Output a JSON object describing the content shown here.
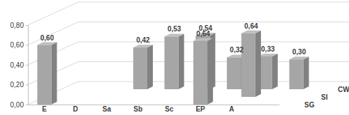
{
  "chart_data": {
    "type": "bar",
    "categories": [
      "E",
      "D",
      "Sa",
      "Sb",
      "Sc",
      "EP",
      "A",
      null
    ],
    "series": [
      {
        "name": "SG",
        "color": "#a6a6a6",
        "values": [
          0.6,
          null,
          null,
          null,
          null,
          0.64,
          null,
          null
        ],
        "value_labels": [
          "0,60",
          null,
          null,
          null,
          null,
          "0,64",
          null,
          null
        ]
      },
      {
        "name": "SI",
        "color": "#a6a6a6",
        "values": [
          null,
          null,
          null,
          null,
          null,
          null,
          0.64,
          null
        ],
        "value_labels": [
          null,
          null,
          null,
          null,
          null,
          null,
          "0,64",
          null
        ]
      },
      {
        "name": "CW",
        "color": "#a6a6a6",
        "values": [
          null,
          null,
          0.42,
          0.53,
          0.54,
          0.32,
          0.33,
          0.3
        ],
        "value_labels": [
          null,
          null,
          "0,42",
          "0,53",
          "0,54",
          "0,32",
          "0,33",
          "0,30"
        ]
      }
    ],
    "ylim": [
      0,
      0.8
    ],
    "yticks": [
      {
        "value": 0,
        "label": "0,00"
      },
      {
        "value": 0.2,
        "label": "0,20"
      },
      {
        "value": 0.4,
        "label": "0,40"
      },
      {
        "value": 0.6,
        "label": "0,60"
      },
      {
        "value": 0.8,
        "label": "0,80"
      }
    ],
    "grid": true,
    "data_labels": true
  }
}
